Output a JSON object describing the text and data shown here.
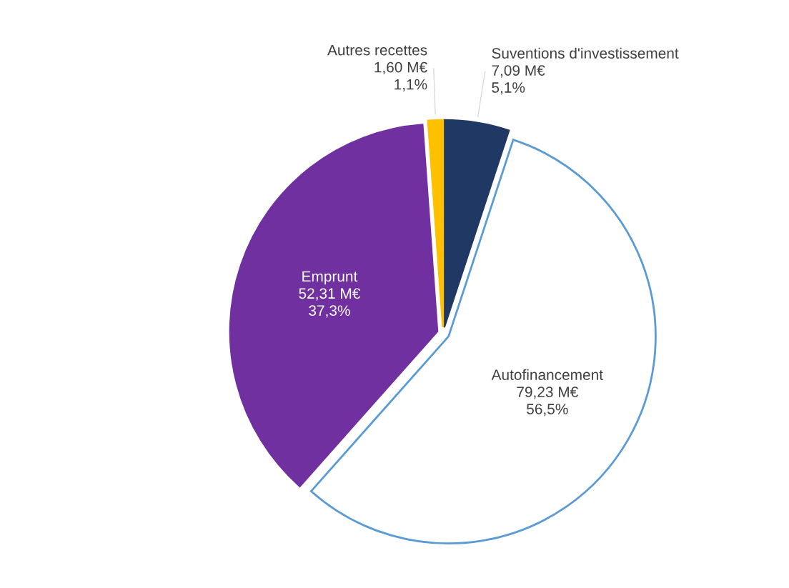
{
  "chart_data": {
    "type": "pie",
    "categories": [
      "Suventions d'investissement",
      "Autofinancement",
      "Emprunt",
      "Autres recettes"
    ],
    "values": [
      7.09,
      79.23,
      52.31,
      1.6
    ],
    "colors": [
      "#1f3864",
      "#ffffff",
      "#7030a0",
      "#ffc000"
    ],
    "value_labels": [
      "7,09 M€\n5,1%",
      "79,23 M€\n56,5%",
      "52,31 M€\n37,3%",
      "1,60 M€\n1,1%"
    ],
    "legend": false
  }
}
